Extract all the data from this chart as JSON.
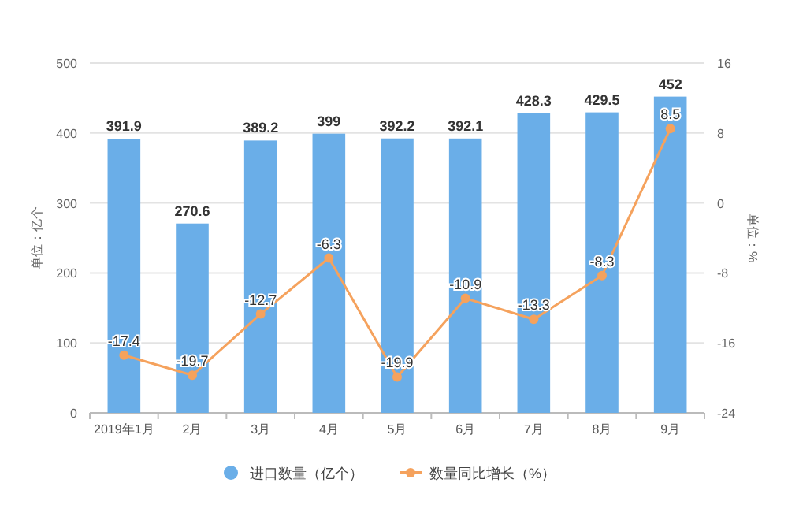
{
  "chart_data": {
    "type": "bar",
    "categories": [
      "2019年1月",
      "2月",
      "3月",
      "4月",
      "5月",
      "6月",
      "7月",
      "8月",
      "9月"
    ],
    "series": [
      {
        "name": "进口数量（亿个）",
        "color": "#6aaee8",
        "values": [
          391.9,
          270.6,
          389.2,
          399,
          392.2,
          392.1,
          428.3,
          429.5,
          452
        ]
      },
      {
        "name": "数量同比增长（%）",
        "type": "line",
        "axis": "y2",
        "color": "#f5a25d",
        "marker": "circle",
        "values": [
          -17.4,
          -19.7,
          -12.7,
          -6.3,
          -19.9,
          -10.9,
          -13.3,
          -8.3,
          8.5
        ]
      }
    ],
    "ylabel": "单位：亿个",
    "y2label": "单位：%",
    "ylim": [
      0,
      500
    ],
    "yticks": [
      0,
      100,
      200,
      300,
      400,
      500
    ],
    "y2lim": [
      -24,
      16
    ],
    "y2ticks": [
      -24,
      -16,
      -8,
      0,
      8,
      16
    ],
    "grid": "y",
    "legend": "bottom",
    "data_labels": true
  }
}
